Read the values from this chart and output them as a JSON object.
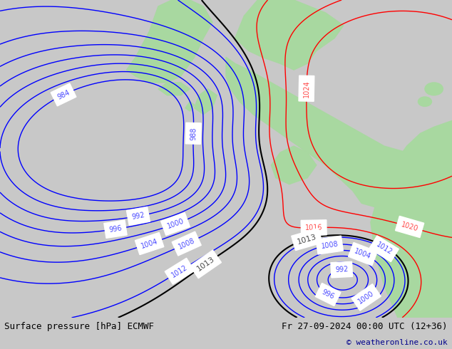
{
  "title_left": "Surface pressure [hPa] ECMWF",
  "title_right": "Fr 27-09-2024 00:00 UTC (12+36)",
  "copyright": "© weatheronline.co.uk",
  "ocean_color": "#d2d2d2",
  "land_color": "#a8d8a0",
  "fig_width": 6.34,
  "fig_height": 4.9,
  "dpi": 100,
  "blue_levels": [
    984,
    988,
    992,
    996,
    1000,
    1004,
    1008,
    1012
  ],
  "red_levels": [
    1016,
    1020,
    1024
  ],
  "black_levels": [
    1013
  ],
  "lw_blue": 1.0,
  "lw_red": 1.0,
  "lw_black": 1.5,
  "label_fontsize": 7
}
